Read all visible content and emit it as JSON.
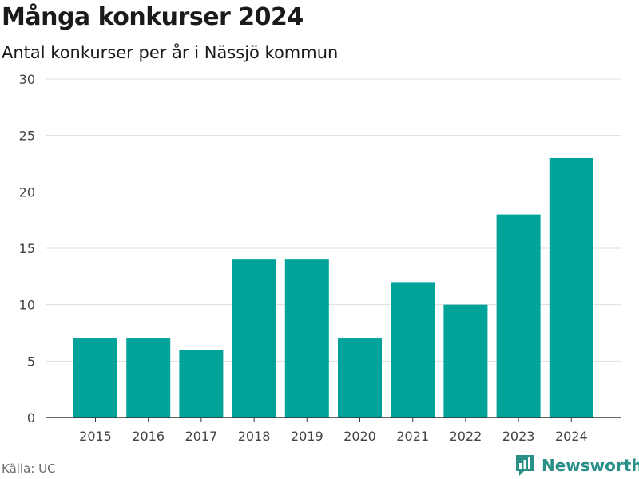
{
  "header": {
    "title": "Många konkurser 2024",
    "subtitle": "Antal konkurser per år i Nässjö kommun"
  },
  "footer": {
    "source": "Källa: UC",
    "brand": "Newsworthy",
    "brand_icon": "newsworthy-logo-icon"
  },
  "colors": {
    "bar": "#00A39A",
    "grid": "#dddddd",
    "axis": "#333333",
    "brand": "#2a8f87"
  },
  "chart_data": {
    "type": "bar",
    "title": "Många konkurser 2024",
    "subtitle": "Antal konkurser per år i Nässjö kommun",
    "xlabel": "",
    "ylabel": "",
    "categories": [
      "2015",
      "2016",
      "2017",
      "2018",
      "2019",
      "2020",
      "2021",
      "2022",
      "2023",
      "2024"
    ],
    "values": [
      7,
      7,
      6,
      14,
      14,
      7,
      12,
      10,
      18,
      23
    ],
    "ylim": [
      0,
      30
    ],
    "yticks": [
      0,
      5,
      10,
      15,
      20,
      25,
      30
    ],
    "grid": true,
    "legend": "none"
  }
}
